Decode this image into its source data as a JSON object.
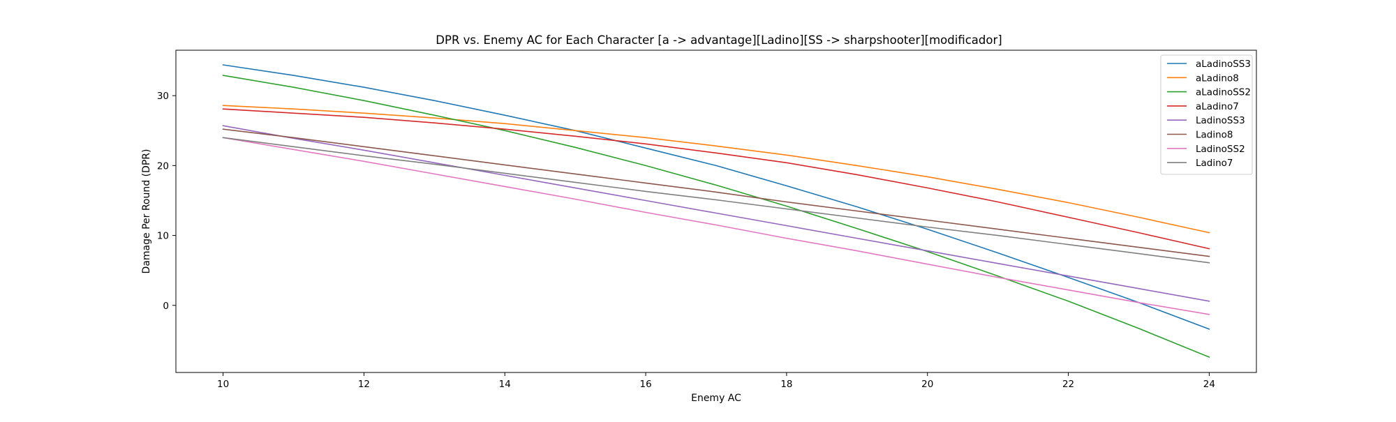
{
  "chart_data": {
    "type": "line",
    "title": "DPR vs. Enemy AC for Each Character  [a -> advantage][Ladino][SS -> sharpshooter][modificador]",
    "xlabel": "Enemy AC",
    "ylabel": "Damage Per Round (DPR)",
    "xlim": [
      9.33,
      24.67
    ],
    "ylim": [
      -9.6,
      36.5
    ],
    "xticks": [
      10,
      12,
      14,
      16,
      18,
      20,
      22,
      24
    ],
    "yticks": [
      0,
      10,
      20,
      30
    ],
    "grid": false,
    "legend_position": "top-right",
    "x": [
      10,
      11,
      12,
      13,
      14,
      15,
      16,
      17,
      18,
      19,
      20,
      21,
      22,
      23,
      24
    ],
    "series": [
      {
        "name": "aLadinoSS3",
        "color": "#1f77b4",
        "values": [
          34.4,
          32.9,
          31.2,
          29.3,
          27.2,
          25.0,
          22.5,
          20.0,
          17.1,
          14.1,
          10.9,
          7.5,
          4.0,
          0.4,
          -3.4
        ]
      },
      {
        "name": "aLadino8",
        "color": "#ff7f0e",
        "values": [
          28.6,
          28.1,
          27.5,
          26.8,
          26.0,
          25.0,
          24.0,
          22.8,
          21.5,
          20.0,
          18.4,
          16.6,
          14.7,
          12.6,
          10.4
        ]
      },
      {
        "name": "aLadinoSS2",
        "color": "#2ca02c",
        "values": [
          32.9,
          31.2,
          29.3,
          27.2,
          25.0,
          22.6,
          20.0,
          17.2,
          14.2,
          11.0,
          7.7,
          4.2,
          0.6,
          -3.3,
          -7.4
        ]
      },
      {
        "name": "aLadino7",
        "color": "#d62728",
        "values": [
          28.1,
          27.5,
          26.9,
          26.1,
          25.2,
          24.2,
          23.1,
          21.8,
          20.4,
          18.7,
          16.8,
          14.8,
          12.6,
          10.4,
          8.1
        ]
      },
      {
        "name": "LadinoSS3",
        "color": "#9467bd",
        "values": [
          25.7,
          23.9,
          22.2,
          20.4,
          18.6,
          16.8,
          15.0,
          13.2,
          11.4,
          9.6,
          7.8,
          6.0,
          4.2,
          2.4,
          0.6
        ]
      },
      {
        "name": "Ladino8",
        "color": "#8c564b",
        "values": [
          25.2,
          24.0,
          22.7,
          21.4,
          20.1,
          18.8,
          17.5,
          16.2,
          14.8,
          13.5,
          12.2,
          10.9,
          9.6,
          8.3,
          7.0
        ]
      },
      {
        "name": "LadinoSS2",
        "color": "#e377c2",
        "values": [
          24.0,
          22.3,
          20.6,
          18.8,
          17.0,
          15.2,
          13.3,
          11.5,
          9.6,
          7.8,
          5.9,
          4.0,
          2.2,
          0.4,
          -1.3
        ]
      },
      {
        "name": "Ladino7",
        "color": "#7f7f7f",
        "values": [
          24.0,
          22.7,
          21.4,
          20.2,
          18.9,
          17.6,
          16.3,
          15.1,
          13.8,
          12.5,
          11.2,
          10.0,
          8.7,
          7.4,
          6.1
        ]
      }
    ]
  }
}
